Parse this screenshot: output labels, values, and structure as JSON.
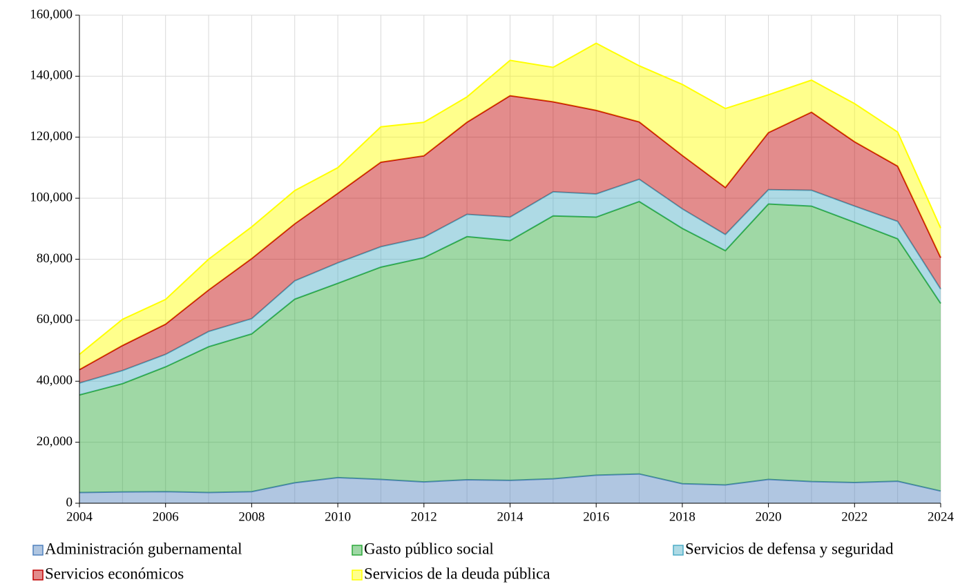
{
  "chart_data": {
    "type": "stacked_area",
    "x": [
      2004,
      2005,
      2006,
      2007,
      2008,
      2009,
      2010,
      2011,
      2012,
      2013,
      2014,
      2015,
      2016,
      2017,
      2018,
      2019,
      2020,
      2021,
      2022,
      2023,
      2024
    ],
    "xlim": [
      2004,
      2024
    ],
    "xticks": [
      2004,
      2006,
      2008,
      2010,
      2012,
      2014,
      2016,
      2018,
      2020,
      2022,
      2024
    ],
    "ylim": [
      0,
      160000
    ],
    "yticks": [
      0,
      {
        "value": 20000,
        "label": "20,000"
      },
      {
        "value": 40000,
        "label": "40,000"
      },
      {
        "value": 60000,
        "label": "60,000"
      },
      {
        "value": 80000,
        "label": "80,000"
      },
      {
        "value": 100000,
        "label": "100,000"
      },
      {
        "value": 120000,
        "label": "120,000"
      },
      {
        "value": 140000,
        "label": "140,000"
      },
      {
        "value": 160000,
        "label": "160,000"
      }
    ],
    "grid": true,
    "legend": "bottom",
    "series": [
      {
        "name": "Administración gubernamental",
        "color": "#4f81bd",
        "values": [
          3500,
          3700,
          3800,
          3500,
          3800,
          6700,
          8400,
          7800,
          7000,
          7700,
          7500,
          8000,
          9200,
          9600,
          6400,
          6000,
          7800,
          7100,
          6800,
          7200,
          4000
        ]
      },
      {
        "name": "Gasto público social",
        "color": "#2aa838",
        "values": [
          32000,
          35500,
          40900,
          47800,
          51700,
          60200,
          63700,
          69600,
          73500,
          79700,
          78600,
          86200,
          84600,
          89300,
          83700,
          76800,
          90300,
          90300,
          85300,
          79500,
          61500
        ]
      },
      {
        "name": "Servicios de defensa y seguridad",
        "color": "#4bacc6",
        "values": [
          3900,
          4300,
          4100,
          5000,
          5000,
          6000,
          6700,
          6700,
          6700,
          7300,
          7700,
          7900,
          7600,
          7300,
          6400,
          5300,
          4700,
          5200,
          5300,
          5700,
          4700
        ]
      },
      {
        "name": "Servicios económicos",
        "color": "#c00000",
        "values": [
          4400,
          8200,
          9900,
          13600,
          19700,
          18700,
          22800,
          27700,
          26700,
          30200,
          39800,
          29500,
          27400,
          18800,
          17500,
          15400,
          18700,
          25600,
          21100,
          18100,
          10300
        ]
      },
      {
        "name": "Servicios de la deuda pública",
        "color": "#ffff00",
        "values": [
          5000,
          8600,
          8100,
          10100,
          10400,
          10900,
          8400,
          11600,
          11000,
          8300,
          11600,
          11300,
          22000,
          18400,
          23300,
          25900,
          12400,
          10500,
          12500,
          11200,
          9700
        ]
      }
    ]
  }
}
